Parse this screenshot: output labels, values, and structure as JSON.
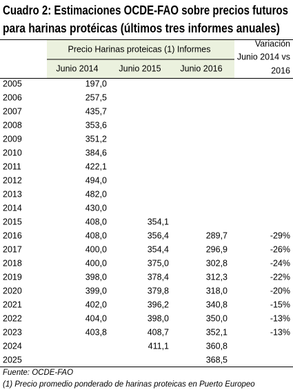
{
  "header": {
    "title": [
      "Cuadro 2: Estimaciones OCDE-FAO sobre precios futuros",
      "para harinas protéicas (últimos tres informes anuales)"
    ]
  },
  "table": {
    "group_header": "Precio Harinas proteicas (1) Informes",
    "variation_header": [
      "Variación",
      "Junio 2014 vs",
      "2016"
    ],
    "columns": [
      "Junio 2014",
      "Junio 2015",
      "Junio 2016"
    ],
    "rows": [
      [
        "2005",
        "197,0",
        null,
        null,
        null
      ],
      [
        "2006",
        "257,5",
        null,
        null,
        null
      ],
      [
        "2007",
        "435,7",
        null,
        null,
        null
      ],
      [
        "2008",
        "353,6",
        null,
        null,
        null
      ],
      [
        "2009",
        "351,2",
        null,
        null,
        null
      ],
      [
        "2010",
        "384,6",
        null,
        null,
        null
      ],
      [
        "2011",
        "422,1",
        null,
        null,
        null
      ],
      [
        "2012",
        "494,0",
        null,
        null,
        null
      ],
      [
        "2013",
        "482,0",
        null,
        null,
        null
      ],
      [
        "2014",
        "430,0",
        null,
        null,
        null
      ],
      [
        "2015",
        "408,0",
        "354,1",
        null,
        null
      ],
      [
        "2016",
        "408,0",
        "356,4",
        "289,7",
        "-29%"
      ],
      [
        "2017",
        "400,0",
        "354,4",
        "296,9",
        "-26%"
      ],
      [
        "2018",
        "400,0",
        "375,0",
        "302,8",
        "-24%"
      ],
      [
        "2019",
        "398,0",
        "378,4",
        "312,3",
        "-22%"
      ],
      [
        "2020",
        "399,0",
        "379,8",
        "318,0",
        "-20%"
      ],
      [
        "2021",
        "402,0",
        "396,2",
        "340,8",
        "-15%"
      ],
      [
        "2022",
        "404,0",
        "398,0",
        "350,0",
        "-13%"
      ],
      [
        "2023",
        "403,8",
        "408,7",
        "352,1",
        "-13%"
      ],
      [
        "2024",
        null,
        "411,1",
        "360,8",
        null
      ],
      [
        "2025",
        null,
        null,
        "368,5",
        null
      ]
    ]
  },
  "footnotes": [
    "Fuente: OCDE-FAO",
    "(1) Precio promedio ponderado de harinas proteicas en Puerto Europeo"
  ]
}
